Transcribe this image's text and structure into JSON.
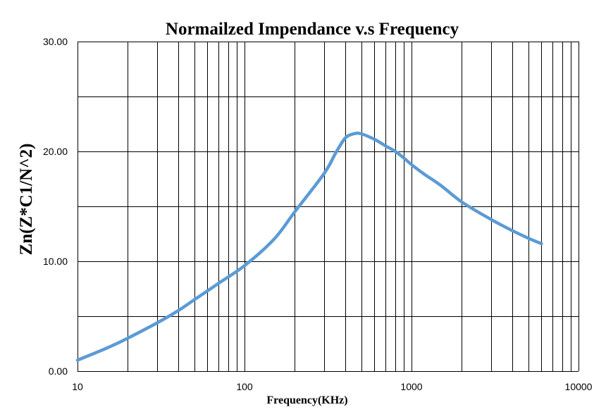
{
  "chart_data": {
    "type": "line",
    "title": "Normailzed Impendance v.s Frequency",
    "xlabel": "Frequency(KHz)",
    "ylabel": "Zn(Z*C1/N^2)",
    "x_scale": "log",
    "xlim": [
      10,
      10000
    ],
    "ylim": [
      0,
      30
    ],
    "x_ticks": [
      "10",
      "100",
      "1000",
      "10000"
    ],
    "y_ticks": [
      "0.00",
      "10.00",
      "20.00",
      "30.00"
    ],
    "grid": true,
    "legend": "none",
    "series": [
      {
        "color": "#5b9bd5",
        "x": [
          10,
          15,
          20,
          30,
          40,
          50,
          70,
          100,
          150,
          200,
          300,
          350,
          400,
          450,
          500,
          600,
          700,
          800,
          900,
          1000,
          1200,
          1500,
          2000,
          3000,
          4000,
          5000,
          6000
        ],
        "y": [
          1.0,
          2.1,
          3.0,
          4.4,
          5.5,
          6.5,
          8.0,
          9.6,
          12.0,
          14.5,
          18.0,
          19.8,
          21.2,
          21.6,
          21.6,
          21.1,
          20.5,
          20.0,
          19.4,
          18.8,
          17.9,
          16.9,
          15.4,
          13.8,
          12.8,
          12.1,
          11.6
        ]
      }
    ]
  }
}
